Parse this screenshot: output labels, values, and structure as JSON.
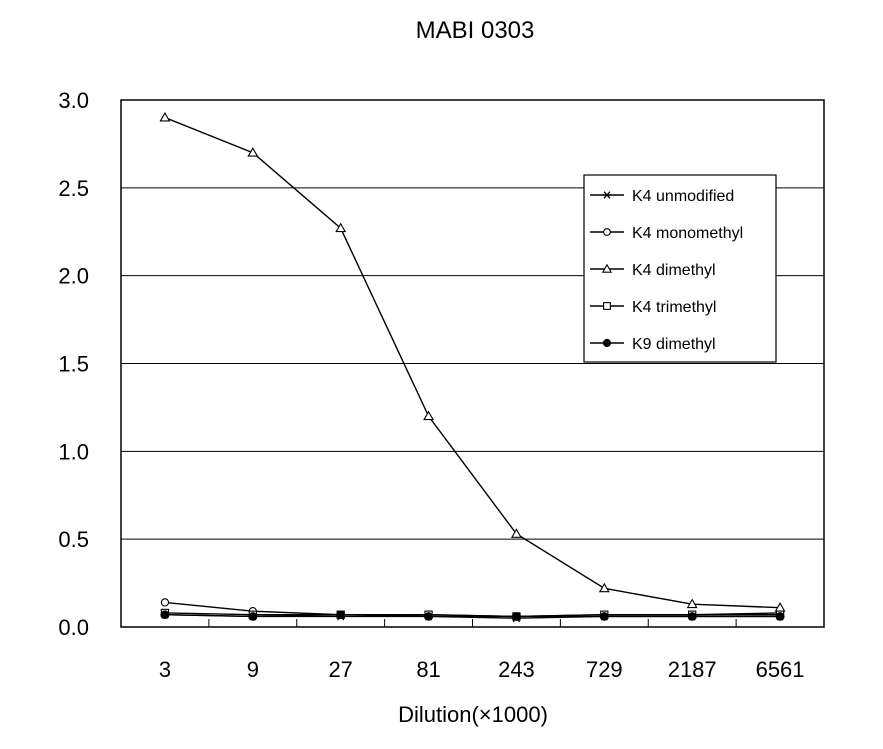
{
  "chart_data": {
    "type": "line",
    "title": "MABI 0303",
    "xlabel": "Dilution(×1000)",
    "ylabel": "",
    "categories": [
      "3",
      "9",
      "27",
      "81",
      "243",
      "729",
      "2187",
      "6561"
    ],
    "ylim": [
      0,
      3.0
    ],
    "yticks": [
      "0.0",
      "0.5",
      "1.0",
      "1.5",
      "2.0",
      "2.5",
      "3.0"
    ],
    "grid": "horizontal",
    "legend_position": "right",
    "series": [
      {
        "name": "K4 unmodified",
        "marker": "asterisk",
        "values": [
          0.07,
          0.06,
          0.06,
          0.06,
          0.05,
          0.06,
          0.06,
          0.06
        ]
      },
      {
        "name": "K4 monomethyl",
        "marker": "open-circle",
        "values": [
          0.14,
          0.09,
          0.07,
          0.07,
          0.06,
          0.07,
          0.07,
          0.08
        ]
      },
      {
        "name": "K4 dimethyl",
        "marker": "open-triangle",
        "values": [
          2.9,
          2.7,
          2.27,
          1.2,
          0.53,
          0.22,
          0.13,
          0.11
        ]
      },
      {
        "name": "K4 trimethyl",
        "marker": "open-square",
        "values": [
          0.08,
          0.07,
          0.07,
          0.07,
          0.06,
          0.07,
          0.07,
          0.07
        ]
      },
      {
        "name": "K9 dimethyl",
        "marker": "filled-circle",
        "values": [
          0.07,
          0.06,
          0.07,
          0.06,
          0.06,
          0.06,
          0.06,
          0.06
        ]
      }
    ]
  }
}
